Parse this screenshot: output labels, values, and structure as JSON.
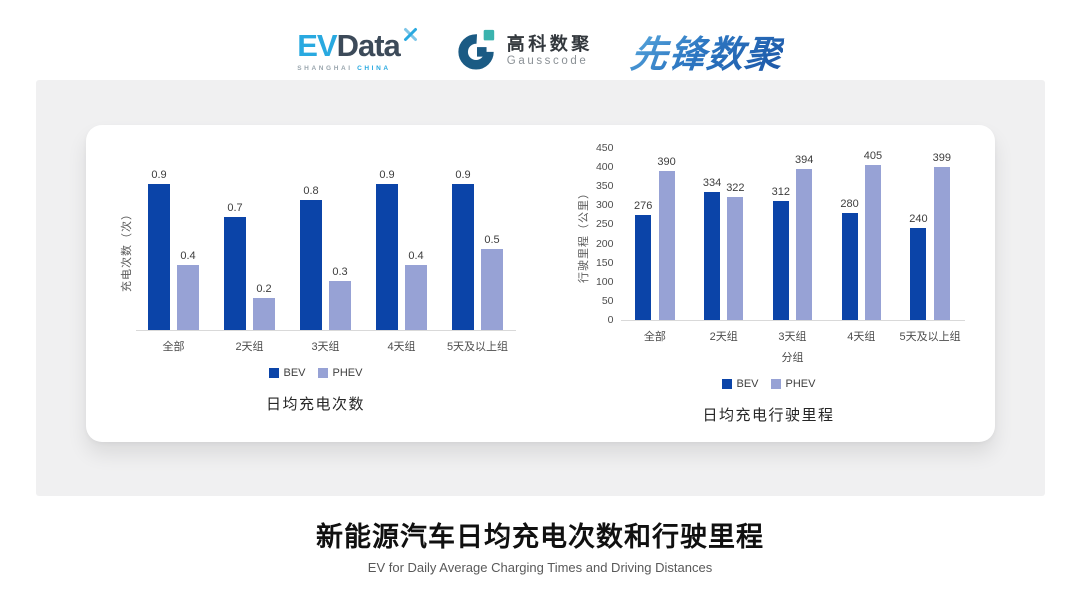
{
  "header": {
    "evdata": {
      "ev": "EV",
      "data": "Data",
      "sub_left": "SHANGHAI",
      "sub_right": "CHINA"
    },
    "gausscode": {
      "cn": "高科数聚",
      "en": "Gausscode"
    },
    "pioneer": {
      "text": "先锋数聚"
    }
  },
  "colors": {
    "bev": "#0B44A8",
    "phev": "#97A2D5",
    "evdata_blue": "#29A9E0",
    "evdata_dark": "#3C4A59",
    "gauss_blue": "#1B5B84",
    "gauss_teal": "#3BB3AE",
    "axis_line": "#D9D9D9",
    "panel_gray": "#F0F0F1"
  },
  "chart_data": [
    {
      "type": "bar",
      "title": "日均充电次数",
      "ylabel": "充电次数（次）",
      "xlabel": "",
      "categories": [
        "全部",
        "2天组",
        "3天组",
        "4天组",
        "5天及以上组"
      ],
      "series": [
        {
          "name": "BEV",
          "values": [
            0.9,
            0.7,
            0.8,
            0.9,
            0.9
          ]
        },
        {
          "name": "PHEV",
          "values": [
            0.4,
            0.2,
            0.3,
            0.4,
            0.5
          ]
        }
      ],
      "ylim": [
        0,
        1.0
      ],
      "yticks": null,
      "grid": false,
      "value_labels": true,
      "legend_position": "bottom"
    },
    {
      "type": "bar",
      "title": "日均充电行驶里程",
      "ylabel": "行驶里程（公里）",
      "xlabel": "分组",
      "categories": [
        "全部",
        "2天组",
        "3天组",
        "4天组",
        "5天及以上组"
      ],
      "series": [
        {
          "name": "BEV",
          "values": [
            276,
            334,
            312,
            280,
            240
          ]
        },
        {
          "name": "PHEV",
          "values": [
            390,
            322,
            394,
            405,
            399
          ]
        }
      ],
      "ylim": [
        0,
        450
      ],
      "yticks": [
        0,
        50,
        100,
        150,
        200,
        250,
        300,
        350,
        400,
        450
      ],
      "grid": false,
      "value_labels": true,
      "legend_position": "bottom"
    }
  ],
  "footer": {
    "title": "新能源汽车日均充电次数和行驶里程",
    "subtitle": "EV for Daily Average Charging Times and Driving Distances"
  }
}
